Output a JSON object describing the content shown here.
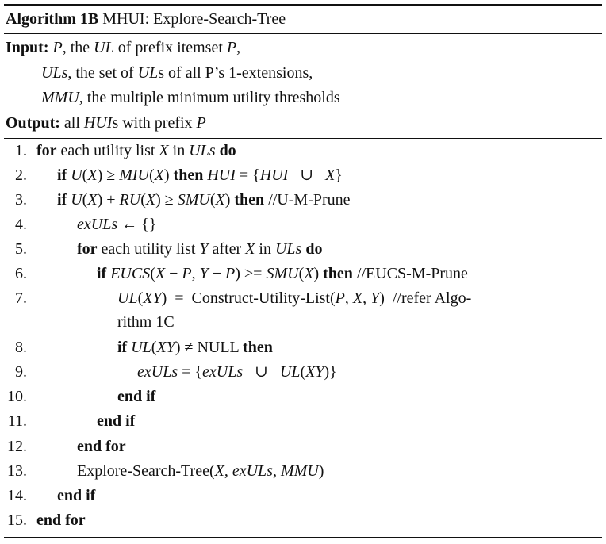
{
  "algorithm": {
    "title_label": "Algorithm",
    "title_number": "1B",
    "title_text": "MHUI: Explore-Search-Tree",
    "input_label": "Input:",
    "inputs": [
      [
        "P",
        ", the ",
        "UL",
        " of prefix itemset ",
        "P",
        ","
      ],
      [
        "ULs",
        ", the set of ",
        "UL",
        "s of all P’s 1-extensions,"
      ],
      [
        "MMU",
        ", the multiple minimum utility thresholds"
      ]
    ],
    "output_label": "Output:",
    "output": [
      "all ",
      "HUI",
      "s with prefix ",
      "P"
    ],
    "lines": [
      {
        "n": "1.",
        "indent": 0,
        "segs": [
          [
            "b",
            "for"
          ],
          [
            "t",
            " each utility list "
          ],
          [
            "m",
            "X"
          ],
          [
            "t",
            " in "
          ],
          [
            "m",
            "ULs"
          ],
          [
            "t",
            " "
          ],
          [
            "b",
            "do"
          ]
        ]
      },
      {
        "n": "2.",
        "indent": 1,
        "segs": [
          [
            "b",
            "if"
          ],
          [
            "t",
            " "
          ],
          [
            "m",
            "U"
          ],
          [
            "t",
            "("
          ],
          [
            "m",
            "X"
          ],
          [
            "t",
            ") ≥ "
          ],
          [
            "m",
            "MIU"
          ],
          [
            "t",
            "("
          ],
          [
            "m",
            "X"
          ],
          [
            "t",
            ") "
          ],
          [
            "b",
            "then"
          ],
          [
            "t",
            " "
          ],
          [
            "m",
            "HUI"
          ],
          [
            "t",
            " = {"
          ],
          [
            "m",
            "HUI"
          ],
          [
            "t",
            "   ∪   "
          ],
          [
            "m",
            "X"
          ],
          [
            "t",
            "}"
          ]
        ]
      },
      {
        "n": "3.",
        "indent": 1,
        "segs": [
          [
            "b",
            "if"
          ],
          [
            "t",
            " "
          ],
          [
            "m",
            "U"
          ],
          [
            "t",
            "("
          ],
          [
            "m",
            "X"
          ],
          [
            "t",
            ") + "
          ],
          [
            "m",
            "RU"
          ],
          [
            "t",
            "("
          ],
          [
            "m",
            "X"
          ],
          [
            "t",
            ") ≥ "
          ],
          [
            "m",
            "SMU"
          ],
          [
            "t",
            "("
          ],
          [
            "m",
            "X"
          ],
          [
            "t",
            ") "
          ],
          [
            "b",
            "then"
          ],
          [
            "t",
            " //U-M-Prune"
          ]
        ]
      },
      {
        "n": "4.",
        "indent": 2,
        "segs": [
          [
            "m",
            "exULs"
          ],
          [
            "t",
            " ← {}"
          ]
        ]
      },
      {
        "n": "5.",
        "indent": 2,
        "segs": [
          [
            "b",
            "for"
          ],
          [
            "t",
            " each utility list "
          ],
          [
            "m",
            "Y"
          ],
          [
            "t",
            " after "
          ],
          [
            "m",
            "X"
          ],
          [
            "t",
            " in "
          ],
          [
            "m",
            "ULs"
          ],
          [
            "t",
            " "
          ],
          [
            "b",
            "do"
          ]
        ]
      },
      {
        "n": "6.",
        "indent": 3,
        "segs": [
          [
            "b",
            "if"
          ],
          [
            "t",
            " "
          ],
          [
            "m",
            "EUCS"
          ],
          [
            "t",
            "("
          ],
          [
            "m",
            "X"
          ],
          [
            "t",
            " − "
          ],
          [
            "m",
            "P"
          ],
          [
            "t",
            ", "
          ],
          [
            "m",
            "Y"
          ],
          [
            "t",
            " − "
          ],
          [
            "m",
            "P"
          ],
          [
            "t",
            ") >= "
          ],
          [
            "m",
            "SMU"
          ],
          [
            "t",
            "("
          ],
          [
            "m",
            "X"
          ],
          [
            "t",
            ") "
          ],
          [
            "b",
            "then"
          ],
          [
            "t",
            " //EUCS-M-Prune"
          ]
        ]
      },
      {
        "n": "7.",
        "indent": 4,
        "segs": [
          [
            "m",
            "UL"
          ],
          [
            "t",
            "("
          ],
          [
            "m",
            "XY"
          ],
          [
            "t",
            ")  =  Construct-Utility-List("
          ],
          [
            "m",
            "P"
          ],
          [
            "t",
            ", "
          ],
          [
            "m",
            "X"
          ],
          [
            "t",
            ", "
          ],
          [
            "m",
            "Y"
          ],
          [
            "t",
            ")  //refer Algo-"
          ]
        ]
      },
      {
        "n": "",
        "indent": 4,
        "segs": [
          [
            "t",
            "rithm 1C"
          ]
        ]
      },
      {
        "n": "8.",
        "indent": 4,
        "segs": [
          [
            "b",
            "if"
          ],
          [
            "t",
            " "
          ],
          [
            "m",
            "UL"
          ],
          [
            "t",
            "("
          ],
          [
            "m",
            "XY"
          ],
          [
            "t",
            ") ≠ NULL "
          ],
          [
            "b",
            "then"
          ]
        ]
      },
      {
        "n": "9.",
        "indent": 5,
        "segs": [
          [
            "m",
            "exULs"
          ],
          [
            "t",
            " = {"
          ],
          [
            "m",
            "exULs"
          ],
          [
            "t",
            "   ∪   "
          ],
          [
            "m",
            "UL"
          ],
          [
            "t",
            "("
          ],
          [
            "m",
            "XY"
          ],
          [
            "t",
            ")}"
          ]
        ]
      },
      {
        "n": "10.",
        "indent": 4,
        "segs": [
          [
            "b",
            "end if"
          ]
        ]
      },
      {
        "n": "11.",
        "indent": 3,
        "segs": [
          [
            "b",
            "end if"
          ]
        ]
      },
      {
        "n": "12.",
        "indent": 2,
        "segs": [
          [
            "b",
            "end for"
          ]
        ]
      },
      {
        "n": "13.",
        "indent": 2,
        "segs": [
          [
            "t",
            "Explore-Search-Tree("
          ],
          [
            "m",
            "X"
          ],
          [
            "t",
            ", "
          ],
          [
            "m",
            "exULs"
          ],
          [
            "t",
            ", "
          ],
          [
            "m",
            "MMU"
          ],
          [
            "t",
            ")"
          ]
        ]
      },
      {
        "n": "14.",
        "indent": 1,
        "segs": [
          [
            "b",
            "end if"
          ]
        ]
      },
      {
        "n": "15.",
        "indent": 0,
        "segs": [
          [
            "b",
            "end for"
          ]
        ]
      }
    ]
  }
}
